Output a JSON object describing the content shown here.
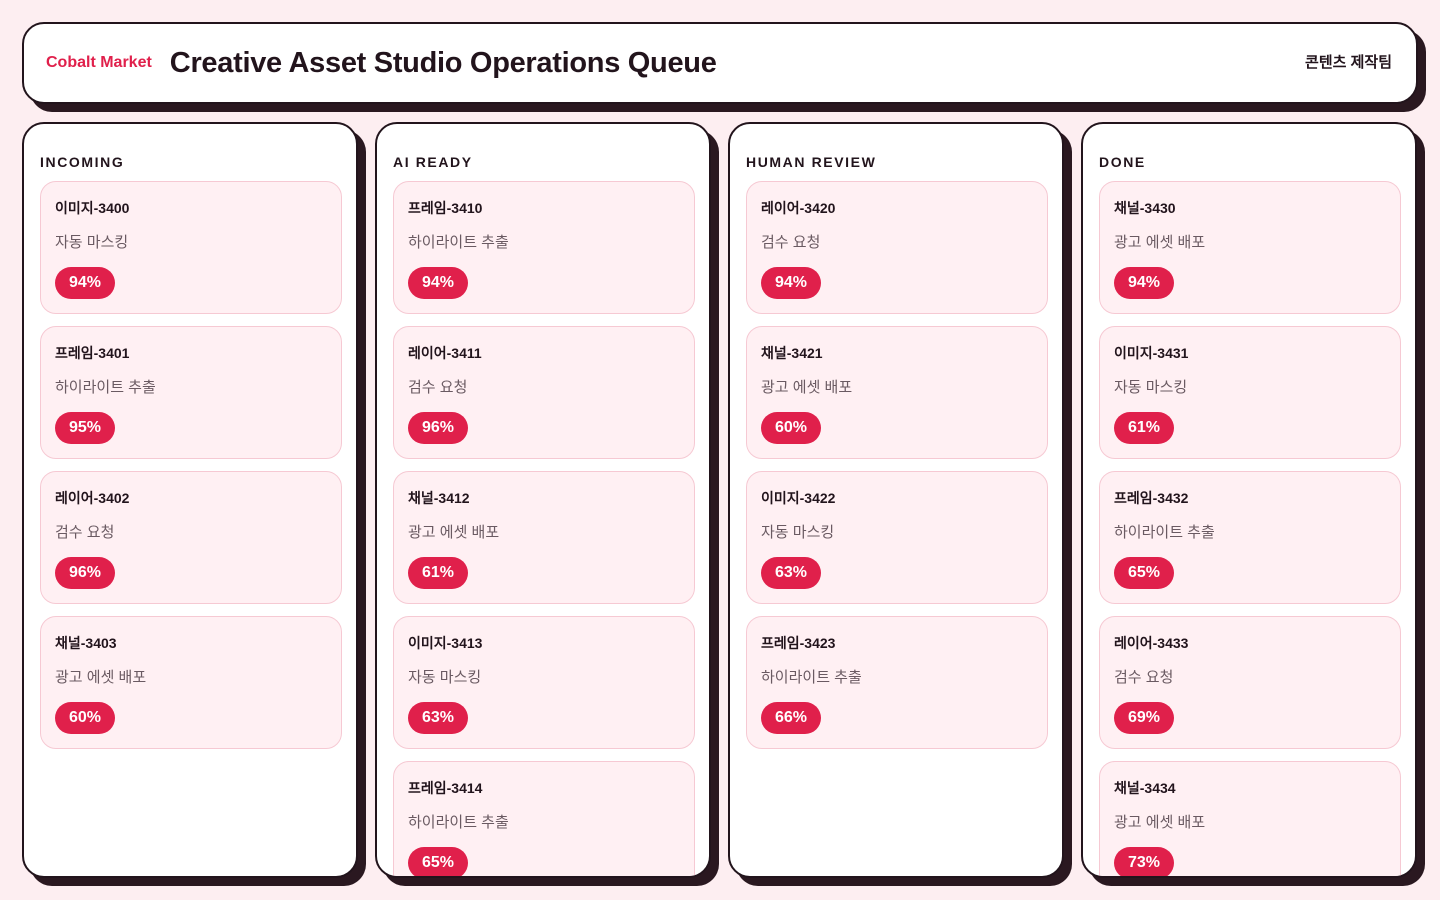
{
  "header": {
    "brand": "Cobalt Market",
    "title": "Creative Asset Studio Operations Queue",
    "team": "콘텐츠 제작팀"
  },
  "colors": {
    "accent": "#e0204b",
    "background": "#fdeef1",
    "ink": "#22141c",
    "card": "#fff0f3"
  },
  "columns": [
    {
      "title": "INCOMING",
      "cards": [
        {
          "id": "이미지-3400",
          "task": "자동 마스킹",
          "score": "94%"
        },
        {
          "id": "프레임-3401",
          "task": "하이라이트 추출",
          "score": "95%"
        },
        {
          "id": "레이어-3402",
          "task": "검수 요청",
          "score": "96%"
        },
        {
          "id": "채널-3403",
          "task": "광고 에셋 배포",
          "score": "60%"
        }
      ]
    },
    {
      "title": "AI READY",
      "cards": [
        {
          "id": "프레임-3410",
          "task": "하이라이트 추출",
          "score": "94%"
        },
        {
          "id": "레이어-3411",
          "task": "검수 요청",
          "score": "96%"
        },
        {
          "id": "채널-3412",
          "task": "광고 에셋 배포",
          "score": "61%"
        },
        {
          "id": "이미지-3413",
          "task": "자동 마스킹",
          "score": "63%"
        },
        {
          "id": "프레임-3414",
          "task": "하이라이트 추출",
          "score": "65%"
        }
      ]
    },
    {
      "title": "HUMAN REVIEW",
      "cards": [
        {
          "id": "레이어-3420",
          "task": "검수 요청",
          "score": "94%"
        },
        {
          "id": "채널-3421",
          "task": "광고 에셋 배포",
          "score": "60%"
        },
        {
          "id": "이미지-3422",
          "task": "자동 마스킹",
          "score": "63%"
        },
        {
          "id": "프레임-3423",
          "task": "하이라이트 추출",
          "score": "66%"
        }
      ]
    },
    {
      "title": "DONE",
      "cards": [
        {
          "id": "채널-3430",
          "task": "광고 에셋 배포",
          "score": "94%"
        },
        {
          "id": "이미지-3431",
          "task": "자동 마스킹",
          "score": "61%"
        },
        {
          "id": "프레임-3432",
          "task": "하이라이트 추출",
          "score": "65%"
        },
        {
          "id": "레이어-3433",
          "task": "검수 요청",
          "score": "69%"
        },
        {
          "id": "채널-3434",
          "task": "광고 에셋 배포",
          "score": "73%"
        }
      ]
    }
  ]
}
